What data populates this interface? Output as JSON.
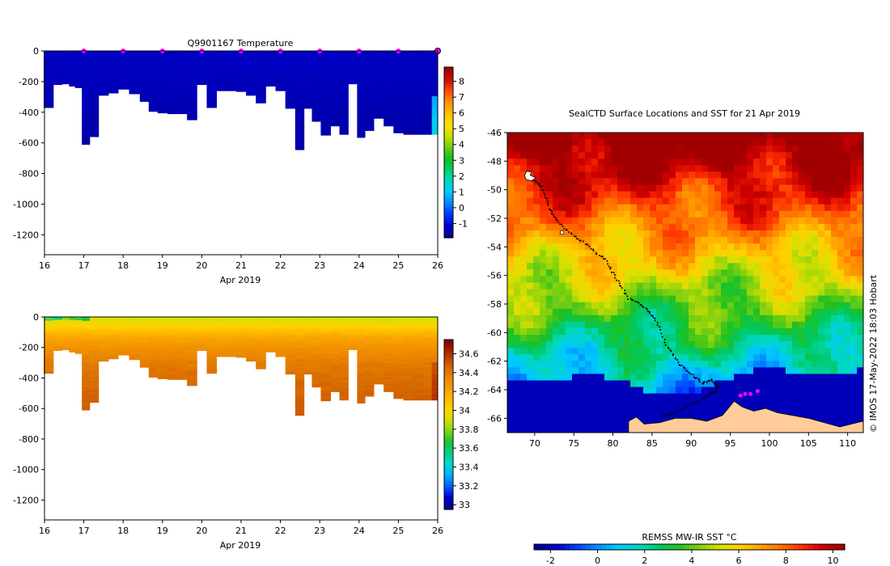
{
  "colors": {
    "water": "#00008b",
    "land": "#ffcc99",
    "background": "#ffffff",
    "marker": "#ff00ff",
    "track": "#000000"
  },
  "temp_scale": [
    "#00008b",
    "#0000d0",
    "#0033ff",
    "#0088ff",
    "#00c8ff",
    "#00d8c0",
    "#00d060",
    "#10c020",
    "#70d010",
    "#c8e000",
    "#ffe000",
    "#ffc000",
    "#ff9000",
    "#ff5000",
    "#d01000",
    "#a00000"
  ],
  "sal_scale": [
    "#00008b",
    "#0000d0",
    "#0060ff",
    "#00b0ff",
    "#00d8d0",
    "#00d080",
    "#20c030",
    "#80d810",
    "#d8e000",
    "#ffd200",
    "#ffb400",
    "#f59800",
    "#e68000",
    "#cc5a00",
    "#b02800",
    "#8b0000"
  ],
  "sst_scale": [
    "#00008b",
    "#0000cd",
    "#0040ff",
    "#0090ff",
    "#00c8ff",
    "#00d8c0",
    "#00c860",
    "#20c020",
    "#80d010",
    "#d8e000",
    "#ffd000",
    "#ffa000",
    "#ff7000",
    "#ff3000",
    "#d00000",
    "#a00000"
  ],
  "chart_data": [
    {
      "type": "heatmap",
      "name": "temperature-section",
      "title": "Q9901167  Temperature",
      "xlabel": "Apr 2019",
      "x_ticks": [
        "16",
        "17",
        "18",
        "19",
        "20",
        "21",
        "22",
        "23",
        "24",
        "25",
        "26"
      ],
      "xlim": [
        16,
        26
      ],
      "ylim": [
        -1330,
        0
      ],
      "y_ticks": [
        "0",
        "-200",
        "-400",
        "-600",
        "-800",
        "-1000",
        "-1200"
      ],
      "y_tick_values": [
        0,
        -200,
        -400,
        -600,
        -800,
        -1000,
        -1200
      ],
      "colorbar": {
        "ticks": [
          "8",
          "7",
          "6",
          "5",
          "4",
          "3",
          "2",
          "1",
          "0",
          "-1"
        ],
        "tick_values": [
          8,
          7,
          6,
          5,
          4,
          3,
          2,
          1,
          0,
          -1
        ],
        "range": [
          -1.9,
          8.9
        ]
      },
      "profile_days": [
        16.1,
        16.35,
        16.55,
        16.7,
        16.85,
        17.05,
        17.25,
        17.5,
        17.75,
        18.0,
        18.3,
        18.55,
        18.75,
        19.0,
        19.25,
        19.5,
        19.75,
        20.0,
        20.25,
        20.5,
        20.75,
        21.0,
        21.25,
        21.5,
        21.75,
        22.0,
        22.25,
        22.5,
        22.7,
        22.9,
        23.15,
        23.4,
        23.6,
        23.85,
        24.05,
        24.25,
        24.5,
        24.75,
        25.0,
        25.25,
        25.5,
        25.75,
        25.95
      ],
      "profile_depths": [
        370,
        220,
        215,
        230,
        240,
        610,
        560,
        290,
        275,
        250,
        280,
        330,
        395,
        405,
        410,
        410,
        450,
        220,
        370,
        260,
        260,
        265,
        290,
        340,
        230,
        260,
        375,
        645,
        375,
        460,
        550,
        490,
        545,
        215,
        565,
        520,
        440,
        490,
        535,
        545,
        545,
        545,
        545
      ],
      "markers_days": [
        17,
        18,
        19,
        20,
        21,
        22,
        23,
        24,
        25,
        26
      ],
      "sample": {
        "surface": -1.3,
        "deep": -1.6,
        "warm_patch": {
          "day": 25.93,
          "top": -300,
          "bottom": -540,
          "values": [
            0.5,
            1.0,
            1.3
          ]
        }
      }
    },
    {
      "type": "heatmap",
      "name": "salinity-section",
      "title": "",
      "xlabel": "Apr 2019",
      "x_ticks": [
        "16",
        "17",
        "18",
        "19",
        "20",
        "21",
        "22",
        "23",
        "24",
        "25",
        "26"
      ],
      "xlim": [
        16,
        26
      ],
      "ylim": [
        -1330,
        0
      ],
      "y_ticks": [
        "0",
        "-200",
        "-400",
        "-600",
        "-800",
        "-1000",
        "-1200"
      ],
      "y_tick_values": [
        0,
        -200,
        -400,
        -600,
        -800,
        -1000,
        -1200
      ],
      "colorbar": {
        "ticks": [
          "34.6",
          "34.4",
          "34.2",
          "34",
          "33.8",
          "33.6",
          "33.4",
          "33.2",
          "33"
        ],
        "tick_values": [
          34.6,
          34.4,
          34.2,
          34.0,
          33.8,
          33.6,
          33.4,
          33.2,
          33.0
        ],
        "range": [
          32.95,
          34.75
        ]
      },
      "profile_days": [
        16.1,
        16.35,
        16.55,
        16.7,
        16.85,
        17.05,
        17.25,
        17.5,
        17.75,
        18.0,
        18.3,
        18.55,
        18.75,
        19.0,
        19.25,
        19.5,
        19.75,
        20.0,
        20.25,
        20.5,
        20.75,
        21.0,
        21.25,
        21.5,
        21.75,
        22.0,
        22.25,
        22.5,
        22.7,
        22.9,
        23.15,
        23.4,
        23.6,
        23.85,
        24.05,
        24.25,
        24.5,
        24.75,
        25.0,
        25.25,
        25.5,
        25.75,
        25.95
      ],
      "profile_depths": [
        370,
        220,
        215,
        230,
        240,
        610,
        560,
        290,
        275,
        250,
        280,
        330,
        395,
        405,
        410,
        410,
        450,
        220,
        370,
        260,
        260,
        265,
        290,
        340,
        230,
        260,
        375,
        645,
        375,
        460,
        550,
        490,
        545,
        215,
        565,
        520,
        440,
        490,
        535,
        545,
        545,
        545,
        545
      ],
      "sample": {
        "surface_band": [
          33.5,
          33.65,
          33.8
        ],
        "profile": [
          [
            0,
            33.9
          ],
          [
            -30,
            33.95
          ],
          [
            -70,
            34.05
          ],
          [
            -130,
            34.2
          ],
          [
            -200,
            34.3
          ],
          [
            -300,
            34.4
          ],
          [
            -400,
            34.45
          ],
          [
            -600,
            34.5
          ]
        ]
      }
    },
    {
      "type": "heatmap",
      "name": "sst-map",
      "title": "SealCTD Surface Locations and SST for 21 Apr 2019",
      "xlabel": "",
      "xlim": [
        66.5,
        112
      ],
      "ylim": [
        -67,
        -46
      ],
      "x_ticks": [
        "70",
        "75",
        "80",
        "85",
        "90",
        "95",
        "100",
        "105",
        "110"
      ],
      "x_tick_values": [
        70,
        75,
        80,
        85,
        90,
        95,
        100,
        105,
        110
      ],
      "y_ticks": [
        "-46",
        "-48",
        "-50",
        "-52",
        "-54",
        "-56",
        "-58",
        "-60",
        "-62",
        "-64",
        "-66"
      ],
      "y_tick_values": [
        -46,
        -48,
        -50,
        -52,
        -54,
        -56,
        -58,
        -60,
        -62,
        -64,
        -66
      ],
      "track": [
        [
          69.8,
          -49.3
        ],
        [
          71,
          -49.8
        ],
        [
          71.8,
          -51.3
        ],
        [
          73,
          -52.3
        ],
        [
          75,
          -53.2
        ],
        [
          77,
          -54.0
        ],
        [
          79,
          -54.9
        ],
        [
          80.5,
          -56.3
        ],
        [
          82,
          -57.6
        ],
        [
          84,
          -58.2
        ],
        [
          85.5,
          -59.1
        ],
        [
          87,
          -61.0
        ],
        [
          88.5,
          -62.2
        ],
        [
          90,
          -62.9
        ],
        [
          91.5,
          -63.6
        ],
        [
          92.5,
          -63.3
        ],
        [
          93.5,
          -63.9
        ],
        [
          92,
          -64.5
        ],
        [
          90,
          -65.0
        ],
        [
          88,
          -65.6
        ],
        [
          86,
          -65.9
        ]
      ],
      "current_positions": [
        [
          96.3,
          -64.4
        ],
        [
          96.9,
          -64.3
        ],
        [
          97.6,
          -64.3
        ],
        [
          98.5,
          -64.1
        ]
      ],
      "colorbar": {
        "label": "REMSS MW-IR SST °C",
        "ticks": [
          "-2",
          "0",
          "2",
          "4",
          "6",
          "8",
          "10"
        ],
        "tick_values": [
          -2,
          0,
          2,
          4,
          6,
          8,
          10
        ],
        "range": [
          -2.7,
          10.5
        ]
      },
      "attribution": "© IMOS 17-May-2022 18:03 Hobart"
    }
  ]
}
